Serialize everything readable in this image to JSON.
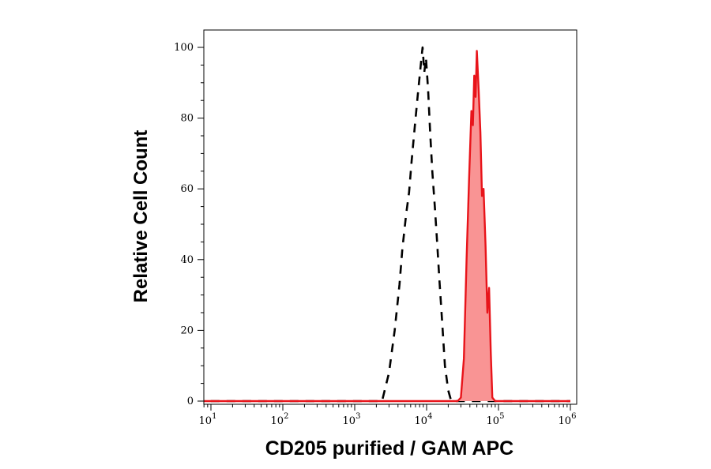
{
  "chart_data": {
    "type": "area",
    "xlabel": "CD205 purified / GAM APC",
    "ylabel": "Relative Cell Count",
    "xscale": "log",
    "xlim": [
      6,
      1000000
    ],
    "ylim": [
      0,
      102
    ],
    "grid": false,
    "x_ticks": [
      {
        "base": "10",
        "exp": "1",
        "value": 10
      },
      {
        "base": "10",
        "exp": "2",
        "value": 100
      },
      {
        "base": "10",
        "exp": "3",
        "value": 1000
      },
      {
        "base": "10",
        "exp": "4",
        "value": 10000
      },
      {
        "base": "10",
        "exp": "5",
        "value": 100000
      },
      {
        "base": "10",
        "exp": "6",
        "value": 1000000
      }
    ],
    "y_ticks": [
      "0",
      "20",
      "40",
      "60",
      "80",
      "100"
    ],
    "series": [
      {
        "style": "dashed",
        "color": "#000000",
        "fill": "none",
        "points": [
          [
            6,
            0
          ],
          [
            2000,
            0
          ],
          [
            2400,
            0
          ],
          [
            3000,
            8
          ],
          [
            3600,
            20
          ],
          [
            4200,
            33
          ],
          [
            4600,
            43
          ],
          [
            5200,
            53
          ],
          [
            5700,
            59
          ],
          [
            6200,
            68
          ],
          [
            6800,
            77
          ],
          [
            7500,
            86
          ],
          [
            8300,
            95
          ],
          [
            8800,
            100
          ],
          [
            9300,
            93
          ],
          [
            9800,
            97
          ],
          [
            10500,
            88
          ],
          [
            11200,
            76
          ],
          [
            12000,
            65
          ],
          [
            13000,
            55
          ],
          [
            14000,
            45
          ],
          [
            15000,
            35
          ],
          [
            16500,
            22
          ],
          [
            18000,
            10
          ],
          [
            20000,
            3
          ],
          [
            22000,
            0
          ],
          [
            1000000,
            0
          ]
        ]
      },
      {
        "style": "solid",
        "color": "#e8141a",
        "fill": "#f99494",
        "points": [
          [
            6,
            0
          ],
          [
            27000,
            0
          ],
          [
            30000,
            1
          ],
          [
            33000,
            12
          ],
          [
            36000,
            40
          ],
          [
            39000,
            63
          ],
          [
            42000,
            82
          ],
          [
            44000,
            78
          ],
          [
            46000,
            92
          ],
          [
            48000,
            86
          ],
          [
            50000,
            99
          ],
          [
            53000,
            88
          ],
          [
            56000,
            76
          ],
          [
            59000,
            58
          ],
          [
            62000,
            60
          ],
          [
            66000,
            44
          ],
          [
            70000,
            25
          ],
          [
            74000,
            32
          ],
          [
            78000,
            14
          ],
          [
            82000,
            1
          ],
          [
            90000,
            0
          ],
          [
            1000000,
            0
          ]
        ]
      }
    ]
  }
}
